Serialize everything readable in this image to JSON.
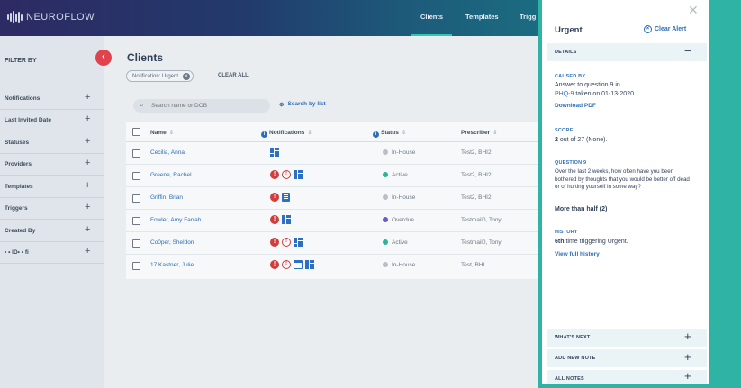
{
  "app": {
    "logo_text": "NEUROFLOW",
    "nav": [
      "Clients",
      "Templates",
      "Trigg"
    ]
  },
  "sidebar": {
    "title": "FILTER BY",
    "collapse_icon": "chevron-left-icon",
    "filters": [
      {
        "label": "Notifications"
      },
      {
        "label": "Last Invited Date"
      },
      {
        "label": "Statuses"
      },
      {
        "label": "Providers"
      },
      {
        "label": "Templates"
      },
      {
        "label": "Triggers"
      },
      {
        "label": "Created By"
      },
      {
        "label": "• • ID• • fi"
      }
    ]
  },
  "main": {
    "title": "Clients",
    "chip_label": "Notification: Urgent",
    "clear_all": "CLEAR ALL",
    "search_placeholder": "Search name or DOB",
    "search_by_list": "Search by list",
    "columns": {
      "name": "Name",
      "notifications": "Notifications",
      "status": "Status",
      "prescriber": "Prescriber"
    },
    "rows": [
      {
        "name": "Cecilia, Anna",
        "status": "In-House",
        "status_color": "#b9bfc6",
        "prescriber": "Test2, BHI2"
      },
      {
        "name": "Greene, Rachel",
        "status": "Active",
        "status_color": "#2cb39a",
        "prescriber": "Test2, BHI2"
      },
      {
        "name": "Griffin, Brian",
        "status": "In-House",
        "status_color": "#b9bfc6",
        "prescriber": "Test2, BHI2"
      },
      {
        "name": "Fowler, Amy Farrah",
        "status": "Overdue",
        "status_color": "#6a5acd",
        "prescriber": "Testmail0, Tony"
      },
      {
        "name": "Co0per, Sheldon",
        "status": "Active",
        "status_color": "#2cb39a",
        "prescriber": "Testmail0, Tony"
      },
      {
        "name": "17 Kastner, Julie",
        "status": "In-House",
        "status_color": "#b9bfc6",
        "prescriber": "Test, BHI"
      }
    ]
  },
  "panel": {
    "title": "Urgent",
    "clear_alert": "Clear Alert",
    "details_label": "DETAILS",
    "caused_by_label": "CAUSED BY",
    "caused_by_line1": "Answer to question 9 in",
    "caused_by_link": "PHQ-9",
    "caused_by_line2_rest": " taken on 01-13-2020.",
    "download_pdf": "Download PDF",
    "score_label": "SCORE",
    "score_value": "2",
    "score_rest": " out of 27 (None).",
    "question_label": "QUESTION 9",
    "question_text": "Over the last 2 weeks, how often have you been bothered by thoughts that you would be better off dead or of hurting yourself in some way?",
    "answer": "More than half (2)",
    "history_label": "HISTORY",
    "history_count": "6th",
    "history_rest": " time triggering Urgent.",
    "view_history": "View full history",
    "whats_next": "WHAT'S NEXT",
    "add_note": "ADD NEW NOTE",
    "all_notes": "ALL NOTES"
  },
  "colors": {
    "accent_teal": "#2fb3a5",
    "link_blue": "#2f6fb5",
    "alert_red": "#d23c3c"
  }
}
